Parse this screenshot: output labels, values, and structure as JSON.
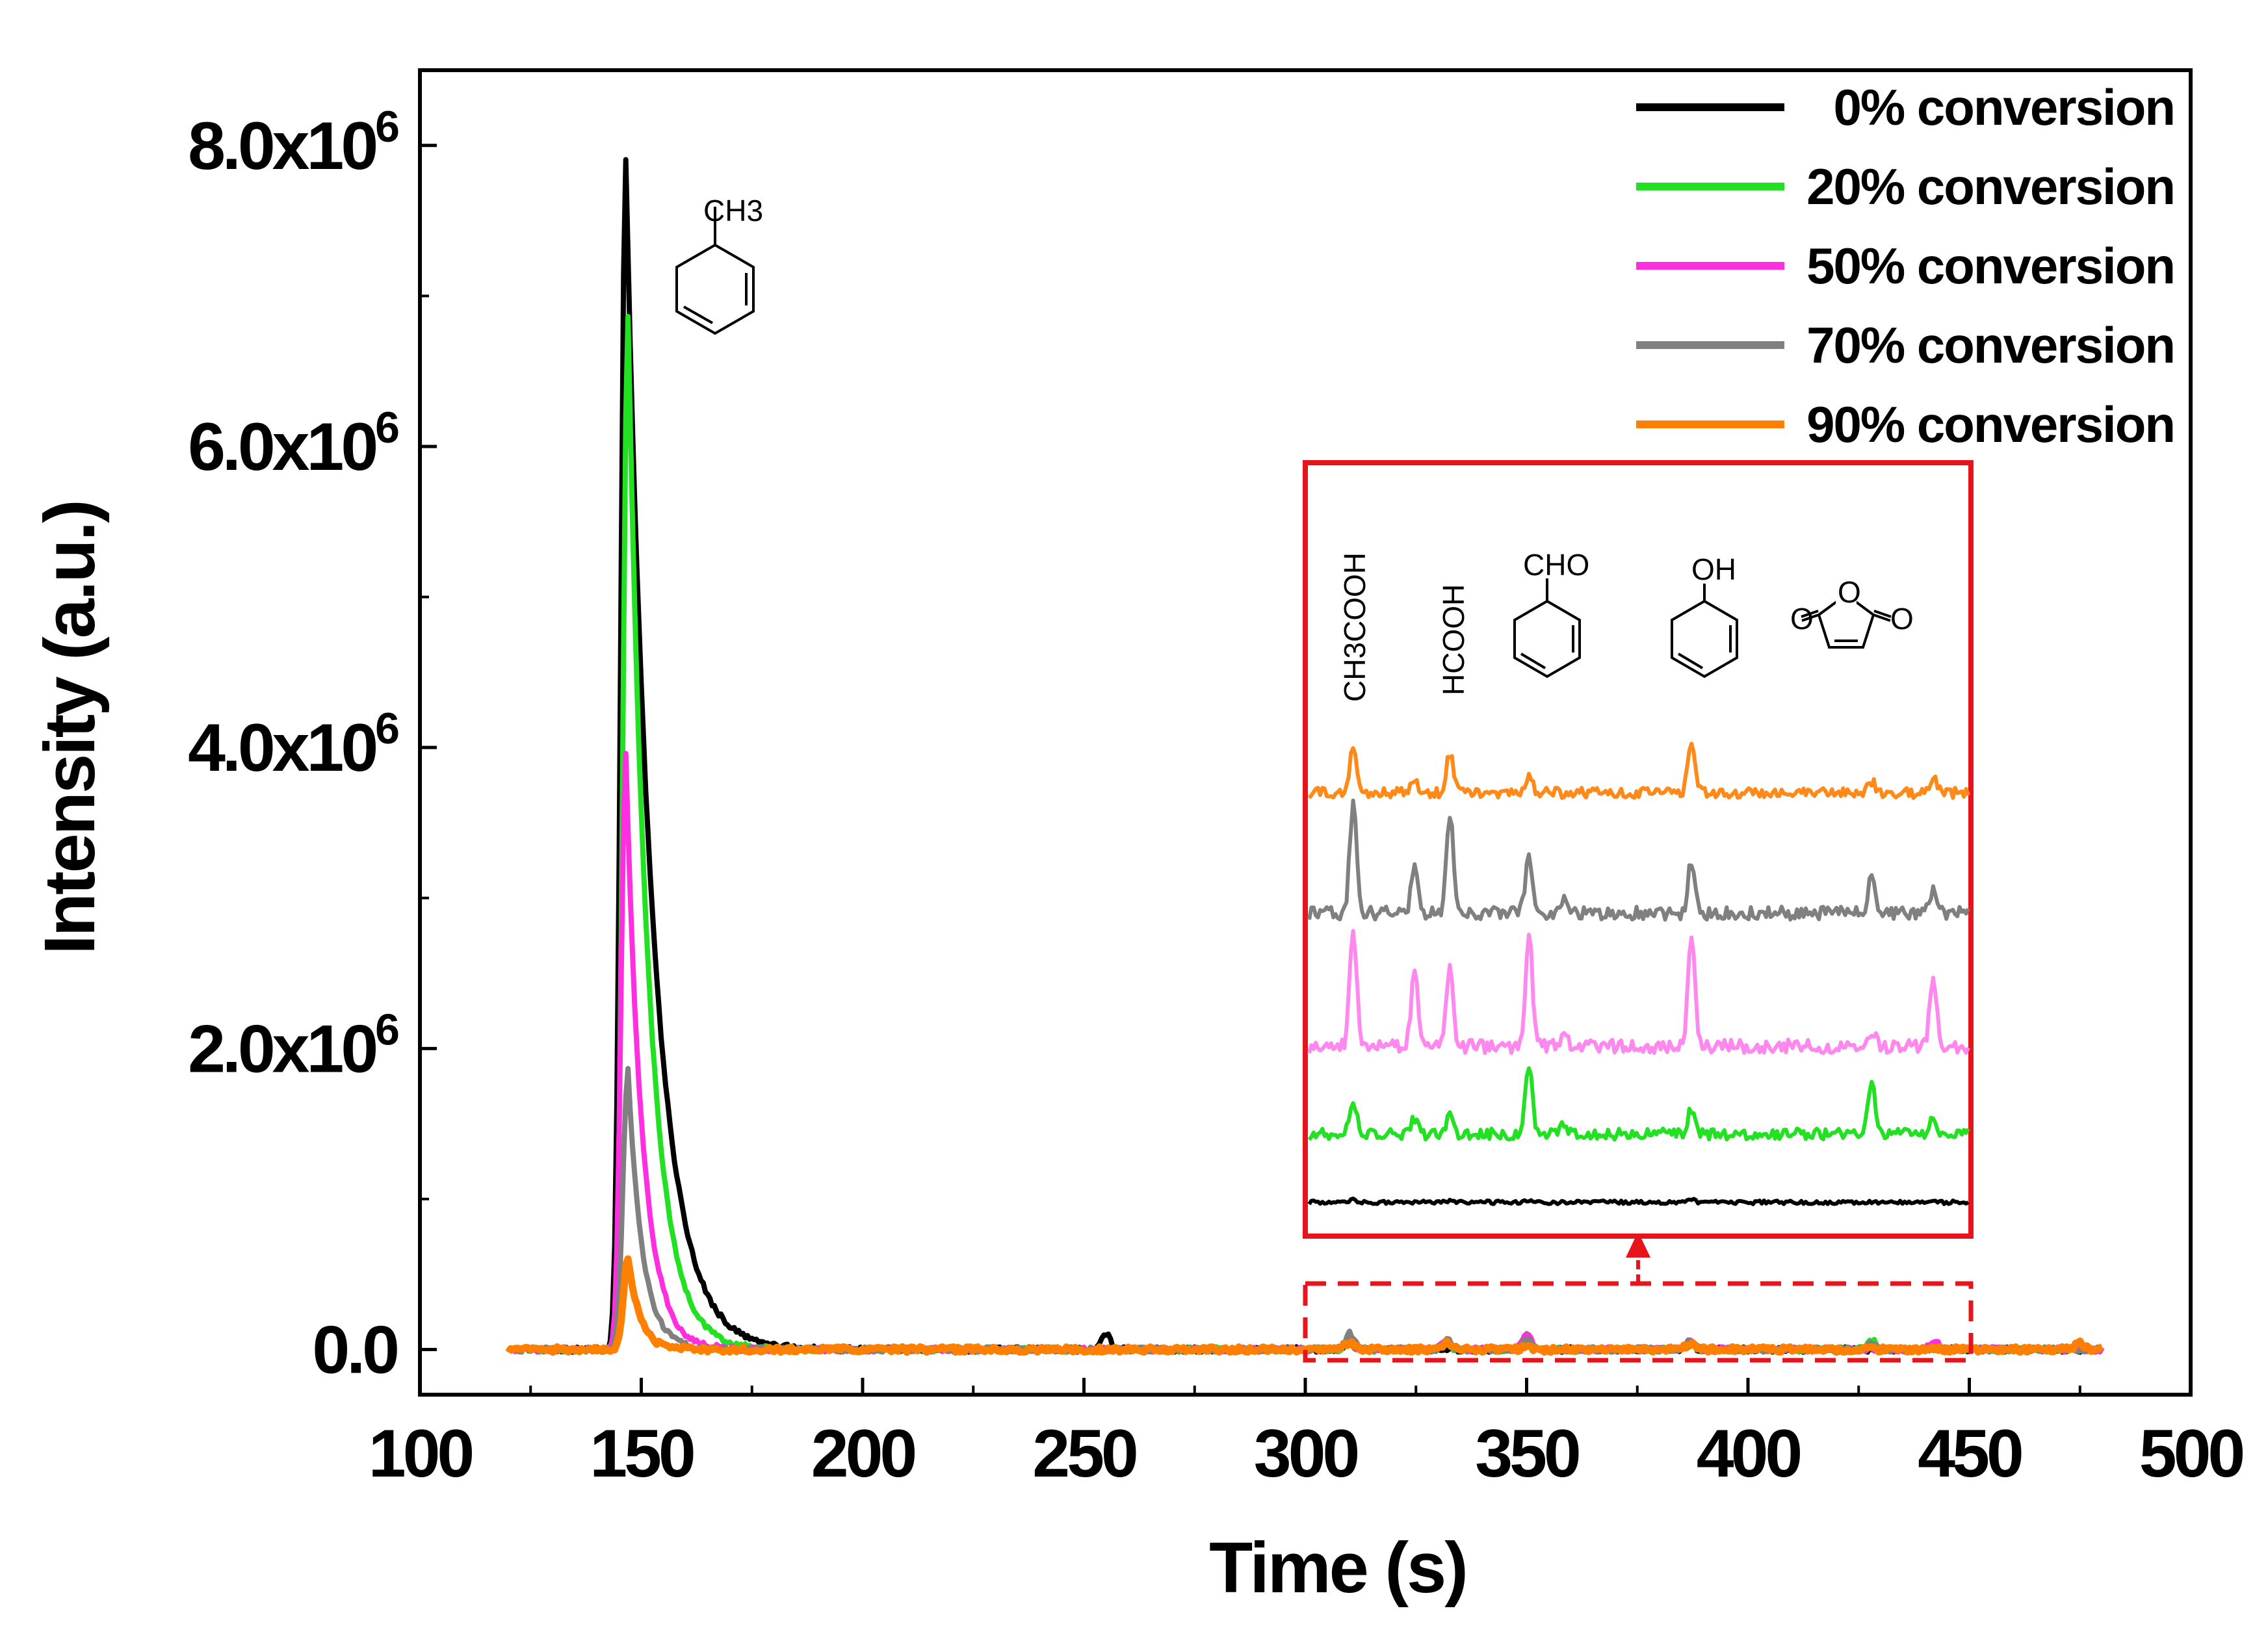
{
  "chart_data": {
    "type": "line",
    "title": "",
    "xlabel": "Time (s)",
    "ylabel": "Intensity (a.u.)",
    "xlim": [
      100,
      500
    ],
    "ylim": [
      -300000,
      8500000
    ],
    "x_ticks": [
      {
        "value": 100,
        "label": "100"
      },
      {
        "value": 150,
        "label": "150"
      },
      {
        "value": 200,
        "label": "200"
      },
      {
        "value": 250,
        "label": "250"
      },
      {
        "value": 300,
        "label": "300"
      },
      {
        "value": 350,
        "label": "350"
      },
      {
        "value": 400,
        "label": "400"
      },
      {
        "value": 450,
        "label": "450"
      },
      {
        "value": 500,
        "label": "500"
      }
    ],
    "y_ticks": [
      {
        "value": 0,
        "base": "0.0",
        "exp": ""
      },
      {
        "value": 2000000,
        "base": "2.0x10",
        "exp": "6"
      },
      {
        "value": 4000000,
        "base": "4.0x10",
        "exp": "6"
      },
      {
        "value": 6000000,
        "base": "6.0x10",
        "exp": "6"
      },
      {
        "value": 8000000,
        "base": "8.0x10",
        "exp": "6"
      }
    ],
    "legend_position": "top-right",
    "series": [
      {
        "name": "0% conversion",
        "color": "#000000",
        "peak_time": 146.5,
        "peak": 7900000,
        "rise": 1.6,
        "decay": 6.0,
        "minor_peaks": [
          [
            255,
            100000
          ],
          [
            310,
            40000
          ],
          [
            350,
            50000
          ],
          [
            387,
            30000
          ],
          [
            442,
            50000
          ]
        ]
      },
      {
        "name": "20% conversion",
        "color": "#22e022",
        "peak_time": 147,
        "peak": 6850000,
        "rise": 1.6,
        "decay": 4.6,
        "minor_peaks": [
          [
            310,
            50000
          ],
          [
            332,
            30000
          ],
          [
            350,
            90000
          ],
          [
            387,
            40000
          ],
          [
            428,
            60000
          ]
        ]
      },
      {
        "name": "50% conversion",
        "color": "#ff2ee0",
        "peak_time": 146.5,
        "peak": 3950000,
        "rise": 1.5,
        "decay": 3.7,
        "minor_peaks": [
          [
            310,
            70000
          ],
          [
            332,
            60000
          ],
          [
            350,
            120000
          ],
          [
            387,
            50000
          ],
          [
            442,
            60000
          ]
        ]
      },
      {
        "name": "70% conversion",
        "color": "#808080",
        "peak_time": 147,
        "peak": 1850000,
        "rise": 1.6,
        "decay": 3.2,
        "minor_peaks": [
          [
            310,
            110000
          ],
          [
            332,
            80000
          ],
          [
            350,
            70000
          ],
          [
            387,
            70000
          ],
          [
            428,
            40000
          ]
        ]
      },
      {
        "name": "90% conversion",
        "color": "#ff8000",
        "peak_time": 147,
        "peak": 620000,
        "rise": 1.4,
        "decay": 2.6,
        "minor_peaks": [
          [
            310,
            40000
          ],
          [
            332,
            40000
          ],
          [
            350,
            30000
          ],
          [
            387,
            40000
          ],
          [
            475,
            40000
          ]
        ]
      }
    ],
    "inset": {
      "description": "magnified view of 300–450 s region",
      "xlim": [
        300,
        450
      ],
      "series_order_bottom_to_top": [
        "0% conversion",
        "20% conversion",
        "50% conversion",
        "70% conversion",
        "90% conversion"
      ],
      "series_colors": [
        "#000000",
        "#22e022",
        "#ff88ee",
        "#808080",
        "#ff8a1a"
      ],
      "peak_times": [
        310,
        324,
        332,
        350,
        358,
        387,
        428,
        442
      ],
      "relative_peaks": [
        {
          "310": 0.02,
          "332": 0.01,
          "350": 0.02,
          "387": 0.03
        },
        {
          "310": 0.25,
          "324": 0.12,
          "332": 0.14,
          "350": 0.55,
          "358": 0.1,
          "387": 0.2,
          "428": 0.4,
          "442": 0.15
        },
        {
          "310": 0.8,
          "324": 0.5,
          "332": 0.5,
          "350": 0.75,
          "358": 0.1,
          "387": 0.75,
          "428": 0.1,
          "442": 0.45
        },
        {
          "310": 0.75,
          "324": 0.3,
          "332": 0.7,
          "350": 0.4,
          "358": 0.1,
          "387": 0.35,
          "428": 0.25,
          "442": 0.15
        },
        {
          "310": 0.4,
          "324": 0.12,
          "332": 0.35,
          "350": 0.15,
          "387": 0.45,
          "428": 0.1,
          "442": 0.15
        }
      ]
    },
    "annotations": {
      "toluene_label": "CH3",
      "inset_compounds": [
        {
          "name": "acetic-acid",
          "label": "CH3COOH",
          "orientation": "vertical"
        },
        {
          "name": "formic-acid",
          "label": "HCOOH",
          "orientation": "vertical"
        },
        {
          "name": "benzaldehyde",
          "label": "CHO"
        },
        {
          "name": "phenol",
          "label": "OH"
        },
        {
          "name": "maleic-anhydride",
          "label_left": "O",
          "label_ring": "O",
          "label_right": "O"
        }
      ]
    }
  },
  "colors": {
    "highlight_box": "#e8141c"
  }
}
